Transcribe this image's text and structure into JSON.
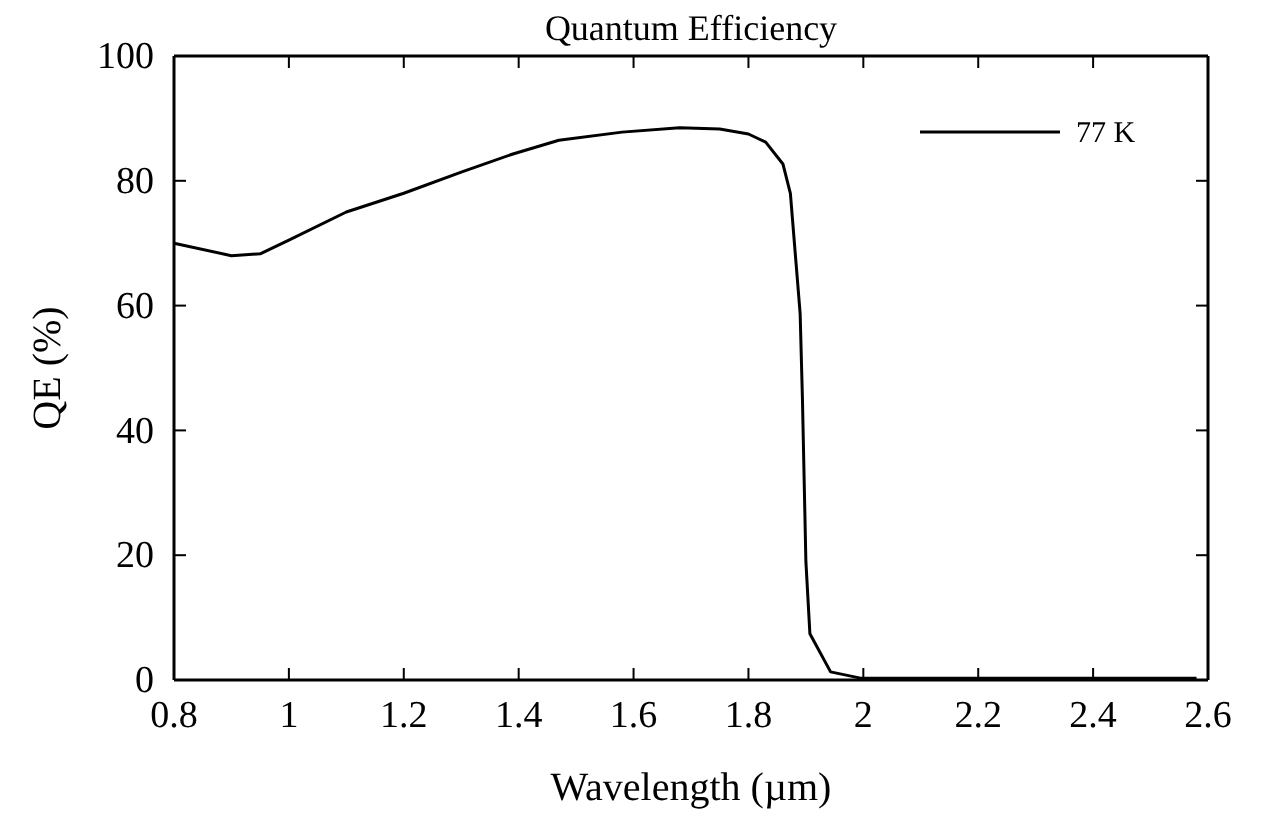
{
  "chart_data": {
    "type": "line",
    "title": "Quantum Efficiency",
    "xlabel": "Wavelength (µm)",
    "ylabel": "QE (%)",
    "xlim": [
      0.8,
      2.6
    ],
    "xticks": [
      0.8,
      1,
      1.2,
      1.4,
      1.6,
      1.8,
      2,
      2.2,
      2.4,
      2.6
    ],
    "ylim": [
      0,
      100
    ],
    "yticks": [
      0,
      20,
      40,
      60,
      80,
      100
    ],
    "grid": false,
    "legend": "top right",
    "marker": "none",
    "line_style": "solid",
    "series": [
      {
        "name": "77 K",
        "color": "#000000",
        "x": [
          0.8,
          0.9,
          0.95,
          1.0,
          1.1,
          1.2,
          1.3,
          1.39,
          1.47,
          1.58,
          1.68,
          1.75,
          1.8,
          1.83,
          1.86,
          1.873,
          1.89,
          1.894,
          1.9,
          1.907,
          1.943,
          1.995,
          2.1,
          2.3,
          2.58
        ],
        "values": [
          70,
          68,
          68.3,
          70.5,
          75,
          78,
          81.4,
          84.3,
          86.5,
          87.8,
          88.5,
          88.3,
          87.5,
          86.2,
          82.7,
          78,
          58.7,
          45,
          19,
          7.4,
          1.3,
          0.3,
          0.3,
          0.3,
          0.3
        ]
      }
    ]
  }
}
